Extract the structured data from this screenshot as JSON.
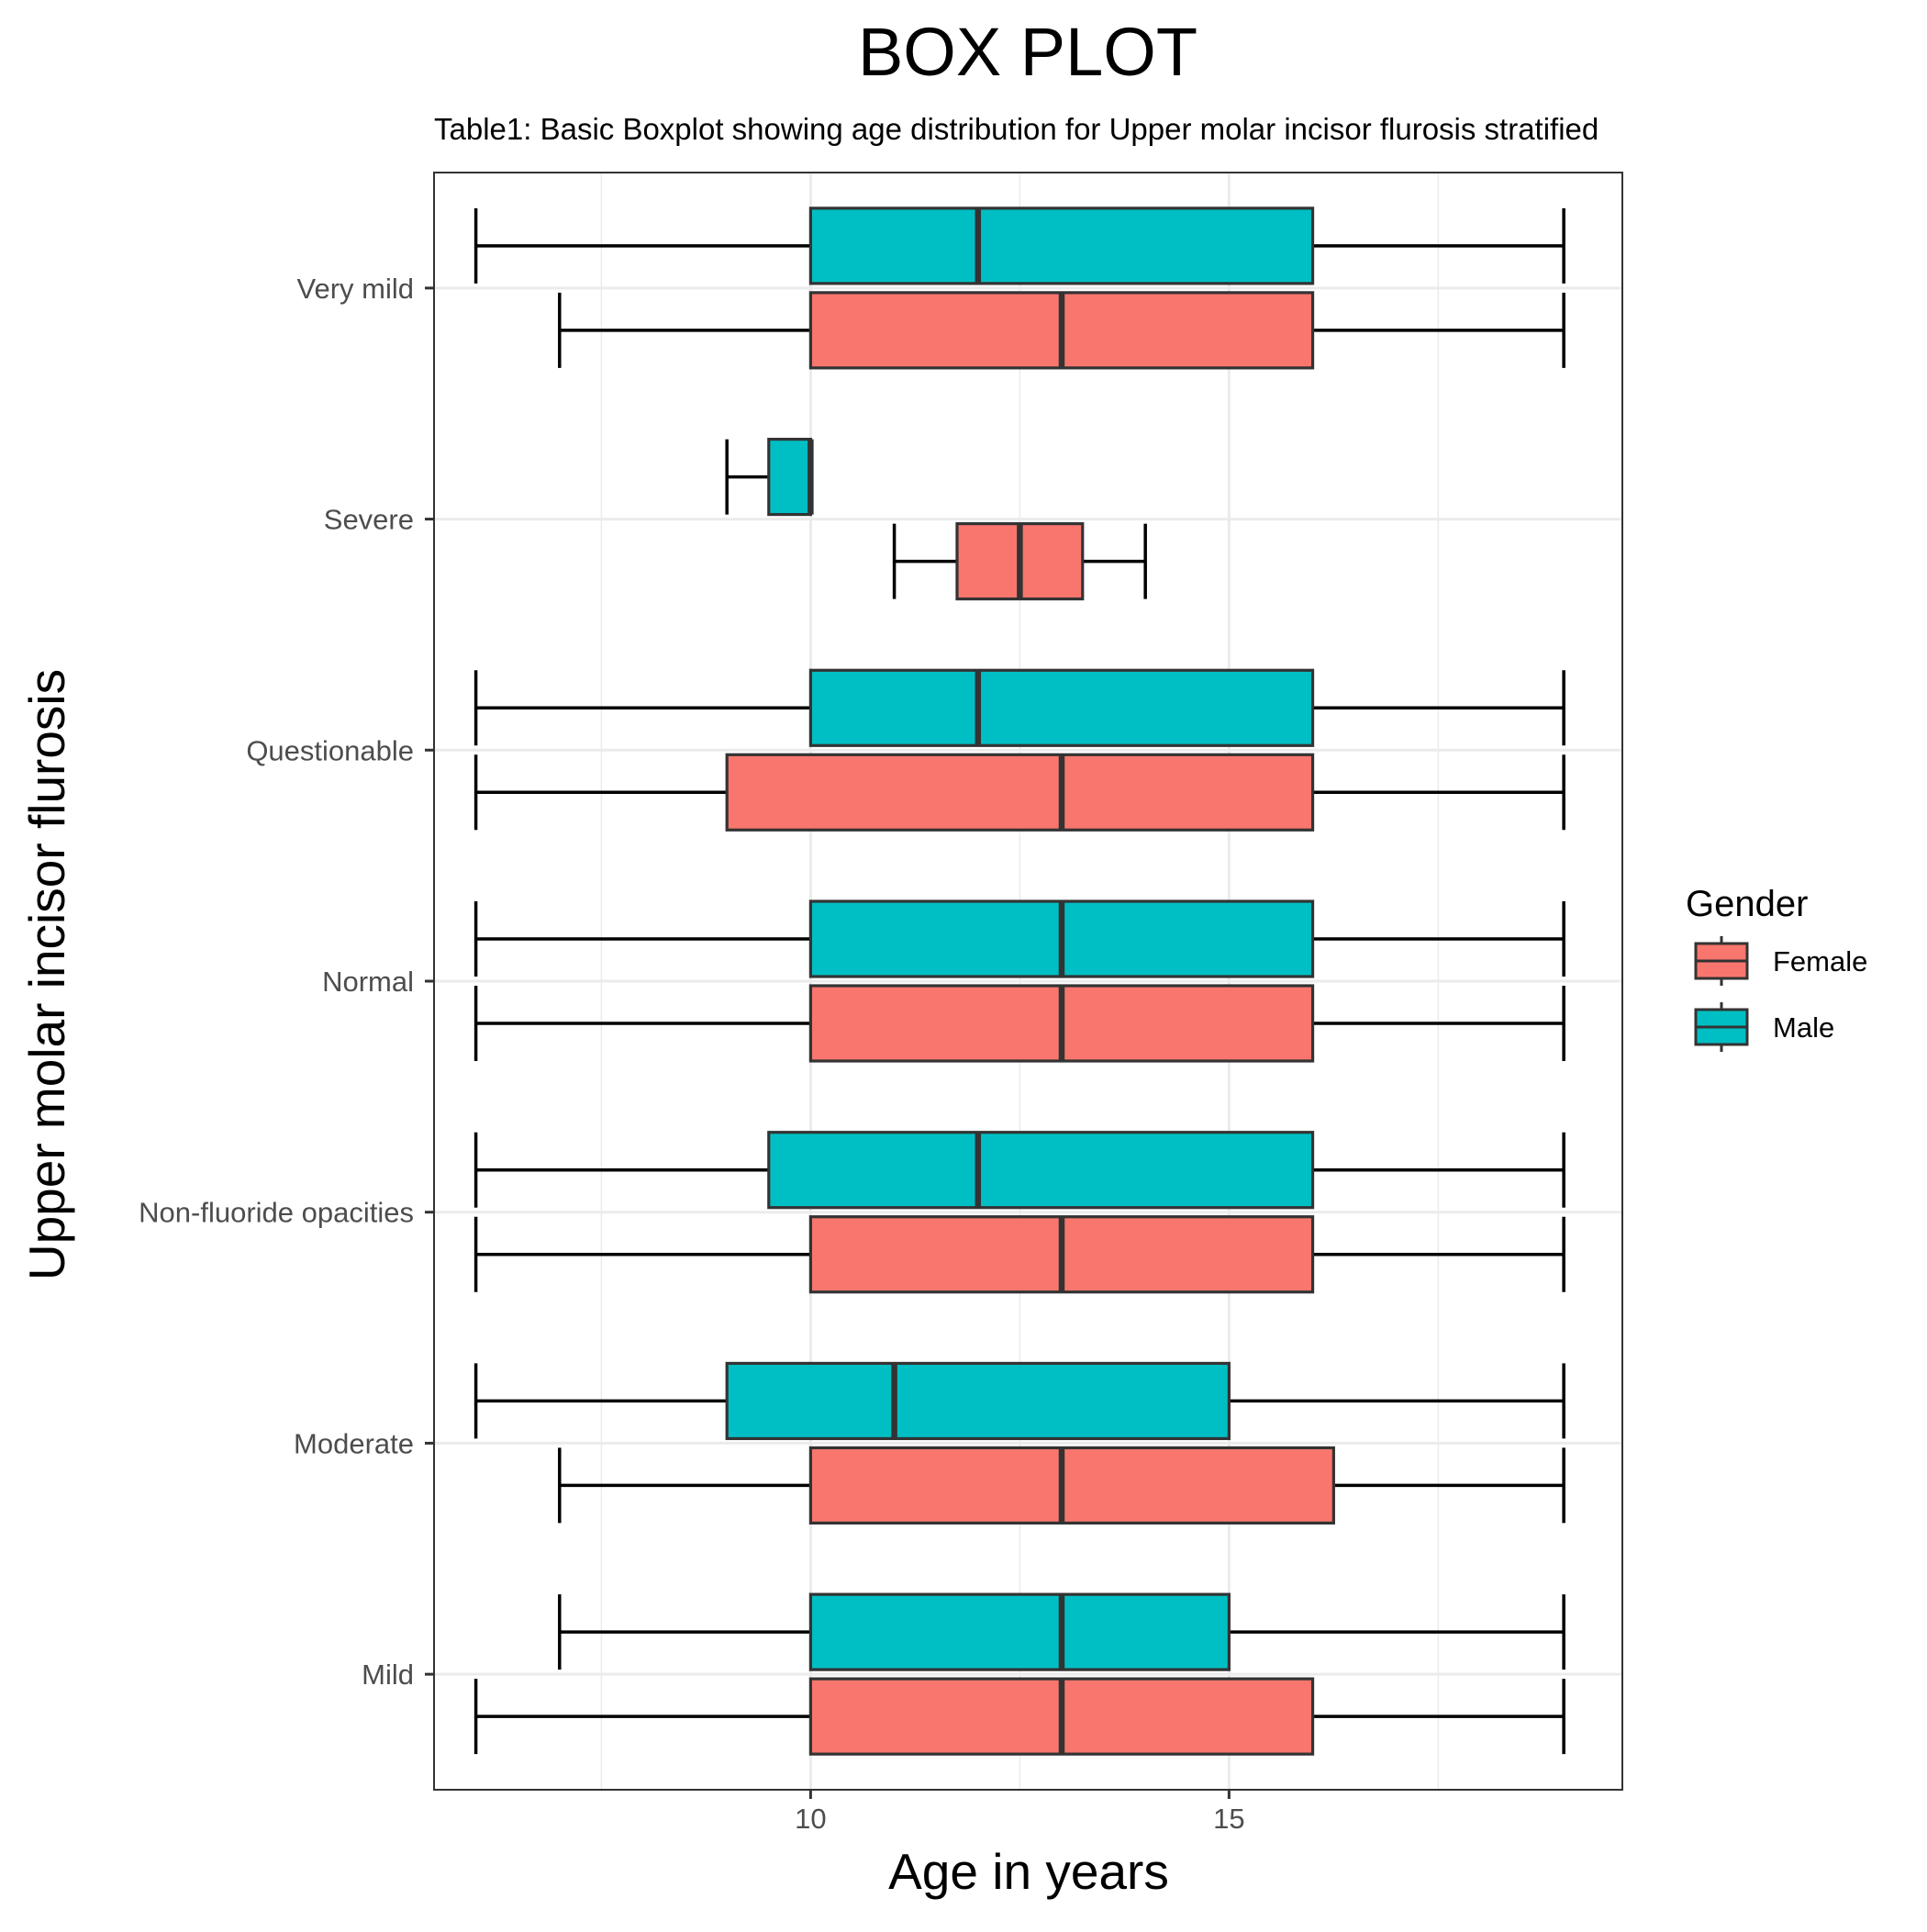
{
  "chart_data": {
    "type": "box",
    "title": "BOX PLOT",
    "subtitle": "Table1: Basic Boxplot showing age distribution for  Upper molar incisor flurosis stratified",
    "xlabel": "Age in years",
    "ylabel": "Upper molar incisor flurosis",
    "xlim": [
      5.5,
      19.7
    ],
    "x_ticks": [
      10,
      15
    ],
    "grid": true,
    "legend": {
      "title": "Gender",
      "position": "right",
      "entries": [
        {
          "label": "Female",
          "color": "#F8766D"
        },
        {
          "label": "Male",
          "color": "#00BFC4"
        }
      ]
    },
    "categories": [
      "Very mild",
      "Severe",
      "Questionable",
      "Normal",
      "Non-fluoride opacities",
      "Moderate",
      "Mild"
    ],
    "series": [
      {
        "name": "Female",
        "color": "#F8766D",
        "boxes": [
          {
            "category": "Very mild",
            "min": 7,
            "q1": 10,
            "median": 13,
            "q3": 16,
            "max": 19
          },
          {
            "category": "Severe",
            "min": 11,
            "q1": 11.75,
            "median": 12.5,
            "q3": 13.25,
            "max": 14
          },
          {
            "category": "Questionable",
            "min": 6,
            "q1": 9,
            "median": 13,
            "q3": 16,
            "max": 19
          },
          {
            "category": "Normal",
            "min": 6,
            "q1": 10,
            "median": 13,
            "q3": 16,
            "max": 19
          },
          {
            "category": "Non-fluoride opacities",
            "min": 6,
            "q1": 10,
            "median": 13,
            "q3": 16,
            "max": 19
          },
          {
            "category": "Moderate",
            "min": 7,
            "q1": 10,
            "median": 13,
            "q3": 16.25,
            "max": 19
          },
          {
            "category": "Mild",
            "min": 6,
            "q1": 10,
            "median": 13,
            "q3": 16,
            "max": 19
          }
        ]
      },
      {
        "name": "Male",
        "color": "#00BFC4",
        "boxes": [
          {
            "category": "Very mild",
            "min": 6,
            "q1": 10,
            "median": 12,
            "q3": 16,
            "max": 19
          },
          {
            "category": "Severe",
            "min": 9,
            "q1": 9.5,
            "median": 10,
            "q3": 10,
            "max": 10
          },
          {
            "category": "Questionable",
            "min": 6,
            "q1": 10,
            "median": 12,
            "q3": 16,
            "max": 19
          },
          {
            "category": "Normal",
            "min": 6,
            "q1": 10,
            "median": 13,
            "q3": 16,
            "max": 19
          },
          {
            "category": "Non-fluoride opacities",
            "min": 6,
            "q1": 9.5,
            "median": 12,
            "q3": 16,
            "max": 19
          },
          {
            "category": "Moderate",
            "min": 6,
            "q1": 9,
            "median": 11,
            "q3": 15,
            "max": 19
          },
          {
            "category": "Mild",
            "min": 7,
            "q1": 10,
            "median": 13,
            "q3": 15,
            "max": 19
          }
        ]
      }
    ]
  }
}
